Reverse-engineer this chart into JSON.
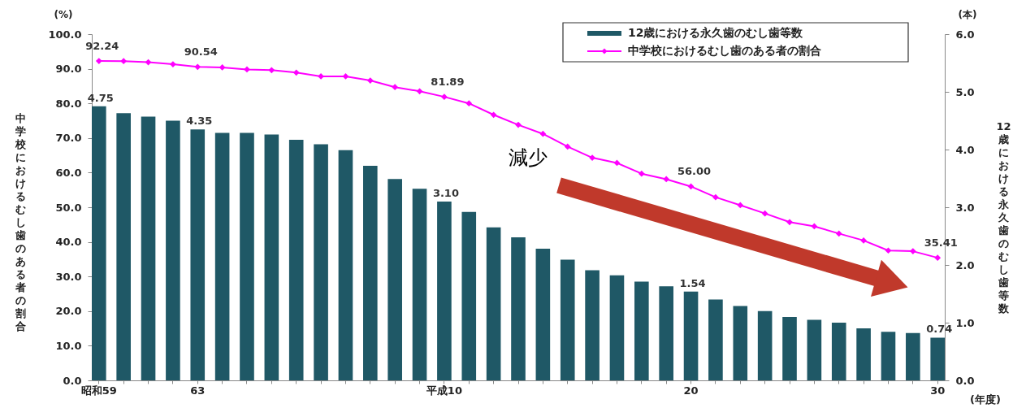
{
  "chart_data": {
    "type": "bar",
    "categories": [
      "昭和59",
      null,
      null,
      null,
      "63",
      null,
      null,
      null,
      null,
      null,
      null,
      null,
      null,
      null,
      "平成10",
      null,
      null,
      null,
      null,
      null,
      null,
      null,
      null,
      null,
      "20",
      null,
      null,
      null,
      null,
      null,
      null,
      null,
      null,
      null,
      "30"
    ],
    "ylabel": "中学校におけるむし歯のある者の割合",
    "y2label": "12歳における永久歯のむし歯等数",
    "ylim": [
      0,
      100
    ],
    "yticks": [
      {
        "value": 0,
        "label": "0.0"
      },
      {
        "value": 10,
        "label": "10.0"
      },
      {
        "value": 20,
        "label": "20.0"
      },
      {
        "value": 30,
        "label": "30.0"
      },
      {
        "value": 40,
        "label": "40.0"
      },
      {
        "value": 50,
        "label": "50.0"
      },
      {
        "value": 60,
        "label": "60.0"
      },
      {
        "value": 70,
        "label": "70.0"
      },
      {
        "value": 80,
        "label": "80.0"
      },
      {
        "value": 90,
        "label": "90.0"
      },
      {
        "value": 100,
        "label": "100.0"
      }
    ],
    "y2lim": [
      0,
      6
    ],
    "y2ticks": [
      {
        "value": 0,
        "label": "0.0"
      },
      {
        "value": 1,
        "label": "1.0"
      },
      {
        "value": 2,
        "label": "2.0"
      },
      {
        "value": 3,
        "label": "3.0"
      },
      {
        "value": 4,
        "label": "4.0"
      },
      {
        "value": 5,
        "label": "5.0"
      },
      {
        "value": 6,
        "label": "6.0"
      }
    ],
    "series": [
      {
        "name": "12歳における永久歯のむし歯等数",
        "axis": "y2",
        "color": "#1f5866",
        "values": [
          4.75,
          4.63,
          4.57,
          4.5,
          4.35,
          4.29,
          4.29,
          4.26,
          4.17,
          4.09,
          3.99,
          3.72,
          3.49,
          3.32,
          3.1,
          2.92,
          2.65,
          2.48,
          2.28,
          2.09,
          1.91,
          1.82,
          1.71,
          1.63,
          1.54,
          1.4,
          1.29,
          1.2,
          1.1,
          1.05,
          1.0,
          0.9,
          0.84,
          0.82,
          0.74
        ],
        "value_labels": [
          "4.75",
          null,
          null,
          null,
          "4.35",
          null,
          null,
          null,
          null,
          null,
          null,
          null,
          null,
          null,
          "3.10",
          null,
          null,
          null,
          null,
          null,
          null,
          null,
          null,
          null,
          "1.54",
          null,
          null,
          null,
          null,
          null,
          null,
          null,
          null,
          null,
          "0.74"
        ]
      },
      {
        "name": "中学校におけるむし歯のある者の割合",
        "type": "line",
        "color": "#ff00ff",
        "marker": "diamond",
        "values": [
          92.24,
          92.2,
          91.9,
          91.3,
          90.54,
          90.4,
          89.8,
          89.6,
          88.9,
          87.8,
          87.8,
          86.6,
          84.7,
          83.5,
          81.89,
          80.0,
          76.7,
          73.8,
          71.2,
          67.5,
          64.3,
          62.8,
          59.7,
          58.1,
          56.0,
          52.9,
          50.6,
          48.2,
          45.7,
          44.5,
          42.4,
          40.4,
          37.5,
          37.3,
          35.41
        ],
        "value_labels": [
          "92.24",
          null,
          null,
          null,
          "90.54",
          null,
          null,
          null,
          null,
          null,
          null,
          null,
          null,
          null,
          "81.89",
          null,
          null,
          null,
          null,
          null,
          null,
          null,
          null,
          null,
          "56.00",
          null,
          null,
          null,
          null,
          null,
          null,
          null,
          null,
          null,
          "35.41"
        ]
      }
    ],
    "legend": "top right",
    "grid": false,
    "annotations": [
      "(%)",
      "(本)",
      "(年度)",
      "減少"
    ]
  }
}
